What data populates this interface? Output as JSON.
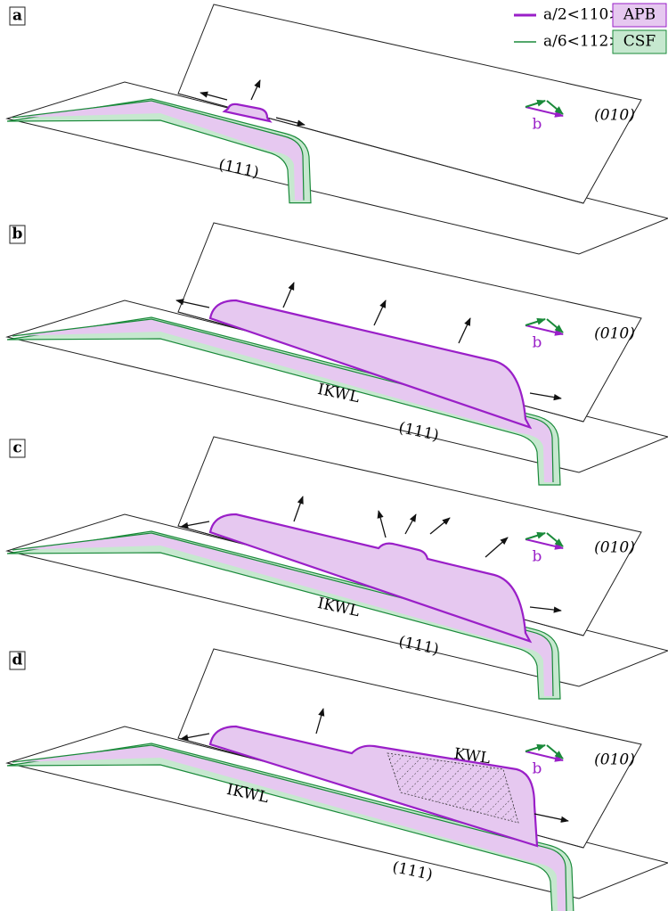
{
  "legend": {
    "items": [
      {
        "line": "a/2<110>",
        "box": "APB"
      },
      {
        "line": "a/6<112>",
        "box": "CSF"
      }
    ]
  },
  "panels": [
    {
      "label": "a",
      "plane_top": "(010)",
      "plane_bottom": "(111)",
      "vector": "b"
    },
    {
      "label": "b",
      "plane_top": "(010)",
      "plane_bottom": "(111)",
      "vector": "b",
      "lock": "IKWL"
    },
    {
      "label": "c",
      "plane_top": "(010)",
      "plane_bottom": "(111)",
      "vector": "b",
      "lock": "IKWL"
    },
    {
      "label": "d",
      "plane_top": "(010)",
      "plane_bottom": "(111)",
      "vector": "b",
      "lock": "IKWL",
      "lock2": "KWL"
    }
  ]
}
